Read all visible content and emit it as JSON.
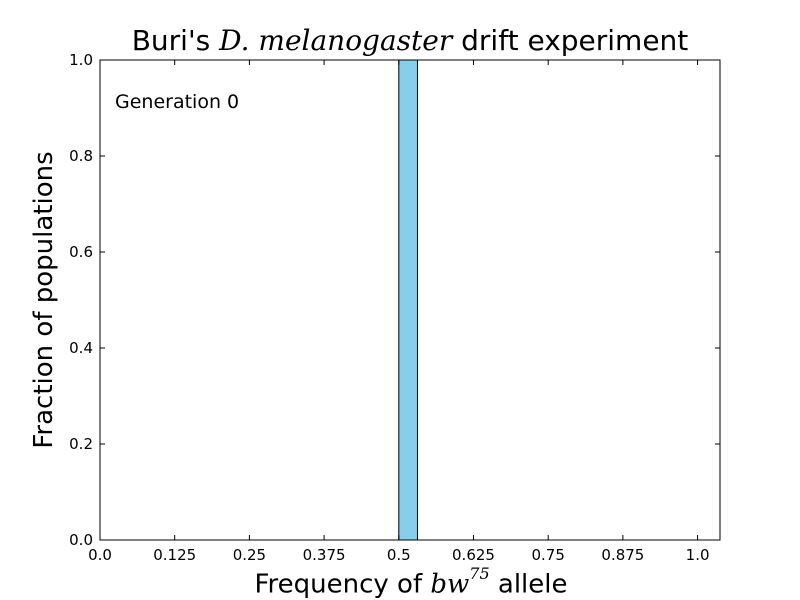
{
  "chart_data": {
    "type": "bar",
    "title_prefix": "Buri's ",
    "title_italic": "D. melanogaster",
    "title_suffix": " drift experiment",
    "xlabel_prefix": "Frequency of ",
    "xlabel_italic": "bw",
    "xlabel_sup": "75",
    "xlabel_suffix": " allele",
    "ylabel": "Fraction of populations",
    "annotation": "Generation 0",
    "xlim": [
      0,
      1.0375
    ],
    "ylim": [
      0,
      1.0
    ],
    "xticks": [
      0.0,
      0.125,
      0.25,
      0.375,
      0.5,
      0.625,
      0.75,
      0.875,
      1.0
    ],
    "xtick_labels": [
      "0.0",
      "0.125",
      "0.25",
      "0.375",
      "0.5",
      "0.625",
      "0.75",
      "0.875",
      "1.0"
    ],
    "yticks": [
      0.0,
      0.2,
      0.4,
      0.6,
      0.8,
      1.0
    ],
    "ytick_labels": [
      "0.0",
      "0.2",
      "0.4",
      "0.6",
      "0.8",
      "1.0"
    ],
    "bars": [
      {
        "x_start": 0.5,
        "x_end": 0.53125,
        "value": 1.0
      }
    ],
    "bar_color": "#87ceeb",
    "grid": false
  }
}
